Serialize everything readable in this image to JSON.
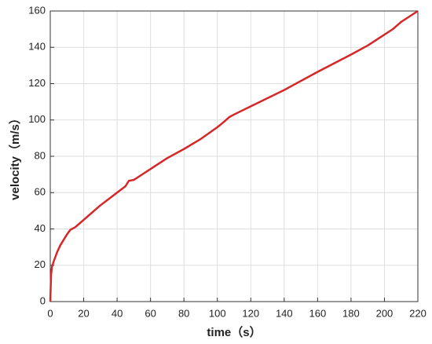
{
  "chart_data": {
    "type": "line",
    "x_label": "time（s）",
    "y_label": "velocity（m/s）",
    "series": [
      {
        "name": "velocity",
        "color": "#d62728",
        "x": [
          0,
          0.5,
          1,
          2,
          4,
          6,
          8,
          10,
          12,
          15,
          20,
          25,
          30,
          35,
          40,
          45,
          47,
          50,
          55,
          60,
          70,
          80,
          90,
          100,
          104,
          107,
          110,
          120,
          140,
          160,
          180,
          190,
          200,
          205,
          210,
          220
        ],
        "values": [
          0,
          15,
          19,
          22,
          27,
          31,
          34,
          37,
          39.5,
          41,
          45,
          49,
          53,
          56.5,
          60,
          63.5,
          66.5,
          67,
          70,
          73,
          79,
          84,
          89.5,
          96,
          99,
          101.5,
          103,
          107.5,
          116.5,
          126.5,
          136,
          141,
          147,
          150,
          154,
          160
        ]
      }
    ],
    "xlim": [
      0,
      220
    ],
    "xticks": [
      0,
      20,
      40,
      60,
      80,
      100,
      120,
      140,
      160,
      180,
      200,
      220
    ],
    "ylim": [
      0,
      160
    ],
    "yticks": [
      0,
      20,
      40,
      60,
      80,
      100,
      120,
      140,
      160
    ],
    "grid": true
  }
}
